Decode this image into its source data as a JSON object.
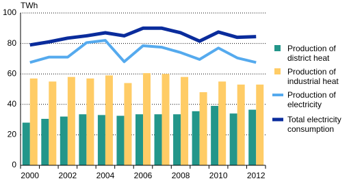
{
  "chart_data": {
    "type": "bar",
    "y_unit": "TWh",
    "categories": [
      "2000",
      null,
      "2002",
      null,
      "2004",
      null,
      "2006",
      null,
      "2008",
      null,
      "2010",
      null,
      "2012"
    ],
    "series": [
      {
        "name": "Production of district heat",
        "type": "bar",
        "color": "#23968a",
        "values": [
          28,
          30.5,
          32,
          33.5,
          33,
          32.5,
          33.5,
          33.5,
          33.5,
          35.5,
          39,
          34,
          36.5
        ]
      },
      {
        "name": "Production of industrial heat",
        "type": "bar",
        "color": "#ffcc66",
        "values": [
          57,
          55,
          58,
          57,
          59,
          54,
          60.5,
          60,
          58,
          48,
          55,
          53,
          53
        ]
      },
      {
        "name": "Production of electricity",
        "type": "line",
        "color": "#55aaee",
        "values": [
          67.5,
          71,
          71,
          80.5,
          82,
          68,
          78.5,
          77.5,
          74,
          69.5,
          77,
          70.5,
          67.5
        ]
      },
      {
        "name": "Total electricity consumption",
        "type": "line",
        "color": "#0a2c9c",
        "values": [
          79,
          81,
          83.5,
          85,
          87,
          85,
          90,
          90,
          87,
          81.5,
          87.5,
          84,
          84.5
        ]
      }
    ],
    "ylim": [
      0,
      100
    ],
    "yticks": [
      0,
      20,
      40,
      60,
      80,
      100
    ],
    "grid": true
  }
}
